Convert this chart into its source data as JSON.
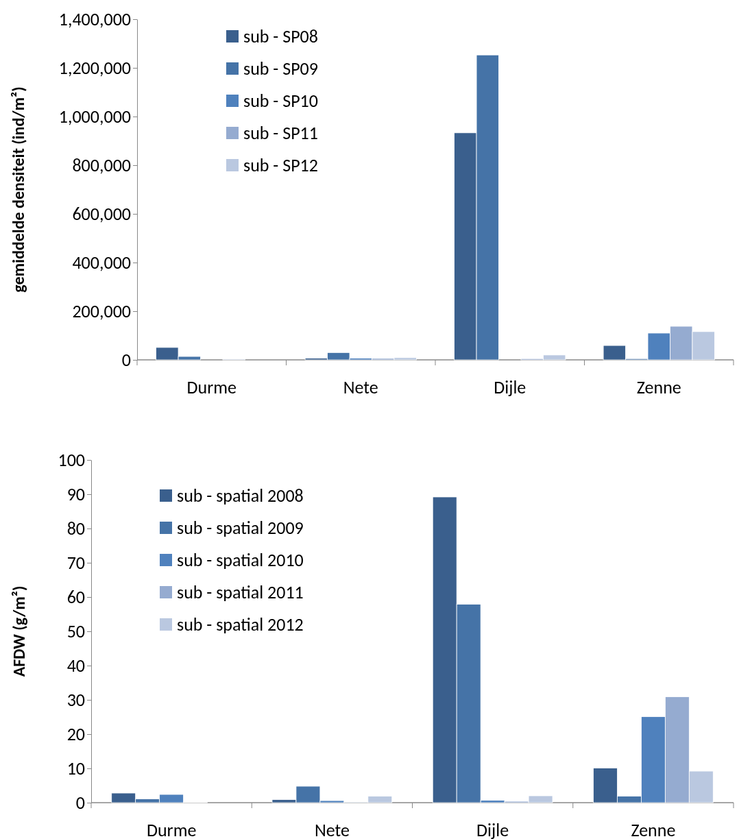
{
  "chart_data": [
    {
      "type": "bar",
      "ylabel": "gemiddelde densiteit (ind/m²)",
      "categories": [
        "Durme",
        "Nete",
        "Dijle",
        "Zenne"
      ],
      "ylim": [
        0,
        1400000
      ],
      "yticks": [
        {
          "value": 0,
          "label": "0"
        },
        {
          "value": 200000,
          "label": "200,000"
        },
        {
          "value": 400000,
          "label": "400,000"
        },
        {
          "value": 600000,
          "label": "600,000"
        },
        {
          "value": 800000,
          "label": "800,000"
        },
        {
          "value": 1000000,
          "label": "1,000,000"
        },
        {
          "value": 1200000,
          "label": "1,200,000"
        },
        {
          "value": 1400000,
          "label": "1,400,000"
        }
      ],
      "grid": false,
      "legend": "top left",
      "series": [
        {
          "name": "sub - SP08",
          "color": "#3a5f8d",
          "values": [
            51000,
            7000,
            933000,
            59000
          ]
        },
        {
          "name": "sub - SP09",
          "color": "#4573a7",
          "values": [
            14000,
            30000,
            1253000,
            5000
          ]
        },
        {
          "name": "sub - SP10",
          "color": "#4f81bd",
          "values": [
            null,
            7000,
            0,
            110000
          ]
        },
        {
          "name": "sub - SP11",
          "color": "#95abd0",
          "values": [
            3000,
            6000,
            5000,
            138000
          ]
        },
        {
          "name": "sub - SP12",
          "color": "#bac8e0",
          "values": [
            null,
            9000,
            20000,
            116000
          ]
        }
      ]
    },
    {
      "type": "bar",
      "ylabel": "AFDW (g/m²)",
      "categories": [
        "Durme",
        "Nete",
        "Dijle",
        "Zenne"
      ],
      "ylim": [
        0,
        100
      ],
      "yticks": [
        0,
        10,
        20,
        30,
        40,
        50,
        60,
        70,
        80,
        90,
        100
      ],
      "grid": false,
      "legend": "top left",
      "series": [
        {
          "name": "sub - spatial 2008",
          "color": "#3a5f8d",
          "values": [
            2.8,
            0.9,
            89.2,
            10.1
          ]
        },
        {
          "name": "sub - spatial 2009",
          "color": "#4573a7",
          "values": [
            1.1,
            4.8,
            57.9,
            1.9
          ]
        },
        {
          "name": "sub - spatial 2010",
          "color": "#4f81bd",
          "values": [
            2.4,
            0.6,
            0.7,
            25.1
          ]
        },
        {
          "name": "sub - spatial 2011",
          "color": "#95abd0",
          "values": [
            0.1,
            0.2,
            0.4,
            30.9
          ]
        },
        {
          "name": "sub - spatial 2012",
          "color": "#bac8e0",
          "values": [
            null,
            1.9,
            2.0,
            9.2
          ]
        }
      ]
    }
  ]
}
